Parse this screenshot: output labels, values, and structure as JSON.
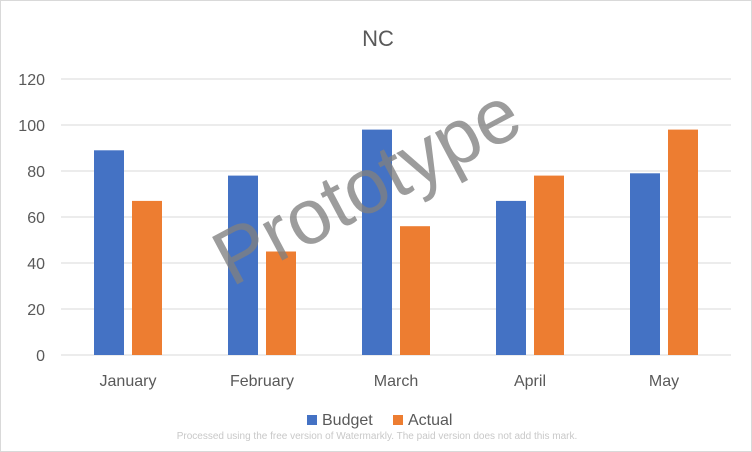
{
  "chart_data": {
    "type": "bar",
    "title": "NC",
    "categories": [
      "January",
      "February",
      "March",
      "April",
      "May"
    ],
    "series": [
      {
        "name": "Budget",
        "color": "#4472c4",
        "values": [
          89,
          78,
          98,
          67,
          79
        ]
      },
      {
        "name": "Actual",
        "color": "#ed7d31",
        "values": [
          67,
          45,
          56,
          78,
          98
        ]
      }
    ],
    "ylim": [
      0,
      120
    ],
    "yticks": [
      0,
      20,
      40,
      60,
      80,
      100,
      120
    ],
    "grid": true,
    "legend": "bottom",
    "xlabel": "",
    "ylabel": ""
  },
  "watermark": {
    "text": "Prototype",
    "footnote": "Processed using the free version of Watermarkly. The paid version does not add this mark."
  }
}
